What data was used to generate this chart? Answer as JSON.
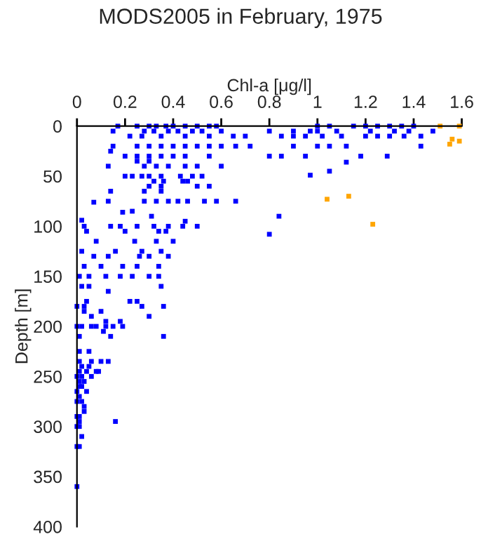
{
  "chart_data": {
    "type": "scatter",
    "title": "MODS2005 in February, 1975",
    "xlabel": "Chl-a [μg/l]",
    "ylabel": "Depth [m]",
    "xlim": [
      0,
      1.6
    ],
    "xticks": [
      0,
      0.2,
      0.4,
      0.6,
      0.8,
      1,
      1.2,
      1.4,
      1.6
    ],
    "ylim": [
      400,
      0
    ],
    "yticks": [
      0,
      50,
      100,
      150,
      200,
      250,
      300,
      350,
      400
    ],
    "grid": false,
    "marker": "square",
    "series": [
      {
        "color": "#0000ff",
        "x": [
          0.17,
          0.25,
          0.3,
          0.33,
          0.37,
          0.4,
          0.45,
          0.5,
          0.55,
          0.58,
          1.0,
          1.05,
          1.15,
          1.2,
          1.25,
          1.3,
          1.35,
          1.4,
          0.15,
          0.28,
          0.32,
          0.38,
          0.42,
          0.48,
          0.52,
          0.6,
          0.8,
          0.9,
          0.97,
          1.0,
          1.08,
          1.22,
          1.32,
          1.38,
          1.48,
          0.22,
          0.27,
          0.35,
          0.45,
          0.55,
          0.65,
          0.7,
          0.85,
          0.9,
          0.95,
          1.02,
          1.1,
          1.2,
          1.25,
          1.3,
          1.36,
          1.43,
          0.15,
          0.25,
          0.3,
          0.35,
          0.4,
          0.45,
          0.5,
          0.55,
          0.6,
          0.66,
          0.72,
          0.9,
          1.0,
          1.05,
          1.12,
          1.43,
          0.14,
          0.2,
          0.25,
          0.3,
          0.35,
          0.4,
          0.45,
          0.55,
          0.8,
          0.85,
          0.95,
          1.18,
          1.29,
          0.25,
          0.3,
          1.12,
          0.13,
          0.28,
          0.33,
          0.38,
          0.45,
          0.5,
          0.6,
          1.05,
          0.2,
          0.23,
          0.27,
          0.3,
          0.35,
          0.43,
          0.48,
          0.52,
          0.97,
          0.32,
          0.36,
          0.44,
          0.46,
          0.3,
          0.35,
          0.5,
          0.55,
          0.14,
          0.28,
          0.35,
          0.07,
          0.13,
          0.28,
          0.33,
          0.38,
          0.42,
          0.46,
          0.53,
          0.58,
          0.66,
          0.19,
          0.23,
          0.31,
          0.84,
          0.8,
          0.02,
          0.45,
          0.03,
          0.14,
          0.18,
          0.25,
          0.32,
          0.38,
          0.44,
          0.5,
          0.04,
          0.2,
          0.34,
          0.37,
          0.08,
          0.24,
          0.33,
          0.4,
          0.02,
          0.16,
          0.27,
          0.35,
          0.07,
          0.13,
          0.26,
          0.3,
          0.38,
          0.03,
          0.1,
          0.19,
          0.25,
          0.34,
          0.01,
          0.05,
          0.12,
          0.18,
          0.23,
          0.3,
          0.34,
          0.02,
          0.05,
          0.35,
          0.13,
          0.04,
          0.22,
          0.25,
          0.0,
          0.03,
          0.27,
          0.36,
          0.03,
          0.1,
          0.06,
          0.3,
          0.12,
          0.18,
          0.0,
          0.02,
          0.06,
          0.08,
          0.12,
          0.15,
          0.19,
          0.11,
          0.01,
          0.14,
          0.36,
          0.01,
          0.05,
          0.01,
          0.06,
          0.1,
          0.13,
          0.02,
          0.05,
          0.01,
          0.04,
          0.08,
          0.09,
          0.0,
          0.02,
          0.06,
          0.01,
          0.03,
          0.01,
          0.02,
          0.0,
          0.04,
          0.01,
          0.0,
          0.02,
          0.03,
          0.03,
          0.0,
          0.01,
          0.01,
          0.16,
          0.0,
          0.01,
          0.02,
          0.0,
          0.01,
          0.0
        ],
        "values": [
          0,
          0,
          0,
          0,
          0,
          0,
          0,
          0,
          0,
          0,
          0,
          0,
          0,
          0,
          0,
          0,
          0,
          0,
          5,
          5,
          5,
          5,
          5,
          5,
          5,
          5,
          5,
          5,
          5,
          5,
          5,
          5,
          5,
          5,
          5,
          10,
          10,
          10,
          10,
          10,
          10,
          10,
          10,
          10,
          10,
          10,
          10,
          10,
          10,
          10,
          10,
          10,
          20,
          20,
          20,
          20,
          20,
          20,
          20,
          20,
          20,
          20,
          20,
          20,
          20,
          20,
          20,
          20,
          25,
          30,
          30,
          30,
          30,
          30,
          30,
          30,
          30,
          30,
          30,
          30,
          30,
          35,
          35,
          36,
          40,
          40,
          40,
          40,
          40,
          40,
          40,
          45,
          50,
          50,
          50,
          50,
          50,
          50,
          50,
          50,
          49,
          55,
          55,
          55,
          55,
          60,
          60,
          60,
          60,
          65,
          65,
          65,
          76,
          75,
          75,
          75,
          75,
          75,
          75,
          75,
          75,
          75,
          86,
          85,
          90,
          90,
          108,
          94,
          95,
          100,
          100,
          100,
          100,
          100,
          100,
          100,
          100,
          105,
          105,
          105,
          105,
          115,
          115,
          115,
          115,
          125,
          125,
          125,
          125,
          130,
          130,
          130,
          130,
          130,
          140,
          140,
          140,
          140,
          140,
          150,
          150,
          150,
          150,
          150,
          150,
          150,
          160,
          160,
          160,
          165,
          175,
          175,
          175,
          180,
          180,
          180,
          180,
          185,
          185,
          190,
          190,
          195,
          195,
          200,
          200,
          200,
          200,
          200,
          200,
          200,
          205,
          210,
          210,
          210,
          225,
          225,
          235,
          235,
          235,
          235,
          240,
          240,
          245,
          245,
          245,
          245,
          250,
          250,
          250,
          255,
          255,
          260,
          260,
          265,
          265,
          270,
          275,
          275,
          280,
          285,
          290,
          290,
          295,
          295,
          300,
          300,
          310,
          320,
          320,
          360
        ]
      },
      {
        "color": "#ffa500",
        "x": [
          1.51,
          1.59,
          1.55,
          1.56,
          1.59,
          1.04,
          1.13,
          1.23
        ],
        "values": [
          0,
          0,
          18,
          13,
          15,
          73,
          70,
          98
        ]
      }
    ]
  }
}
